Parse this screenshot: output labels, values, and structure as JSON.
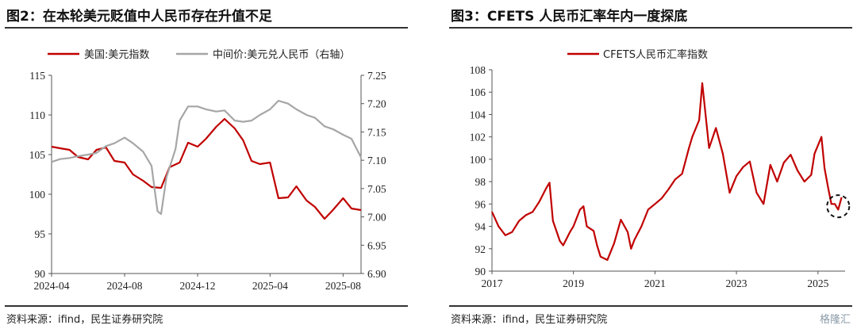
{
  "charts": {
    "left": {
      "title": "图2：在本轮美元贬值中人民币存在升值不足",
      "source": "资料来源：ifind，民生证券研究院"
    },
    "right": {
      "title": "图3：CFETS 人民币汇率年内一度探底",
      "source": "资料来源：ifind，民生证券研究院"
    }
  },
  "watermark": "格隆汇",
  "colors": {
    "red": "#c00000",
    "gray": "#a6a6a6",
    "annotation": "#111111"
  },
  "chart_data": [
    {
      "type": "line",
      "title": "图2：在本轮美元贬值中人民币存在升值不足",
      "x_ticks": [
        "2024-04",
        "2024-08",
        "2024-12",
        "2025-04",
        "2025-08"
      ],
      "x_range": [
        "2024-04-01",
        "2025-08-31"
      ],
      "y_left": {
        "ticks": [
          90,
          95,
          100,
          105,
          110,
          115
        ],
        "ylim": [
          90,
          115
        ]
      },
      "y_right": {
        "ticks": [
          "6.90",
          "6.95",
          "7.00",
          "7.05",
          "7.10",
          "7.15",
          "7.20",
          "7.25"
        ],
        "ylim": [
          6.9,
          7.25
        ]
      },
      "legend_position": "top",
      "grid": false,
      "series": [
        {
          "name": "美国:美元指数",
          "axis": "left",
          "color": "#c00000",
          "points": [
            [
              "2024-04-01",
              106.0
            ],
            [
              "2024-04-15",
              105.8
            ],
            [
              "2024-05-01",
              105.6
            ],
            [
              "2024-05-15",
              104.7
            ],
            [
              "2024-06-01",
              104.4
            ],
            [
              "2024-06-15",
              105.6
            ],
            [
              "2024-07-01",
              105.9
            ],
            [
              "2024-07-15",
              104.2
            ],
            [
              "2024-08-01",
              104.0
            ],
            [
              "2024-08-15",
              102.5
            ],
            [
              "2024-09-01",
              101.7
            ],
            [
              "2024-09-15",
              100.9
            ],
            [
              "2024-10-01",
              100.8
            ],
            [
              "2024-10-15",
              103.4
            ],
            [
              "2024-11-01",
              104.0
            ],
            [
              "2024-11-15",
              106.5
            ],
            [
              "2024-12-01",
              106.0
            ],
            [
              "2024-12-15",
              107.0
            ],
            [
              "2025-01-01",
              108.5
            ],
            [
              "2025-01-15",
              109.5
            ],
            [
              "2025-02-01",
              108.3
            ],
            [
              "2025-02-15",
              106.8
            ],
            [
              "2025-03-01",
              104.2
            ],
            [
              "2025-03-15",
              103.8
            ],
            [
              "2025-04-01",
              104.0
            ],
            [
              "2025-04-15",
              99.5
            ],
            [
              "2025-05-01",
              99.6
            ],
            [
              "2025-05-15",
              101.0
            ],
            [
              "2025-06-01",
              99.2
            ],
            [
              "2025-06-15",
              98.4
            ],
            [
              "2025-07-01",
              96.9
            ],
            [
              "2025-07-15",
              98.0
            ],
            [
              "2025-08-01",
              99.5
            ],
            [
              "2025-08-15",
              98.2
            ],
            [
              "2025-08-31",
              98.0
            ]
          ]
        },
        {
          "name": "中间价:美元兑人民币（右轴）",
          "axis": "right",
          "color": "#a6a6a6",
          "points": [
            [
              "2024-04-01",
              7.097
            ],
            [
              "2024-04-15",
              7.102
            ],
            [
              "2024-05-01",
              7.104
            ],
            [
              "2024-05-15",
              7.107
            ],
            [
              "2024-06-01",
              7.11
            ],
            [
              "2024-06-15",
              7.113
            ],
            [
              "2024-07-01",
              7.125
            ],
            [
              "2024-07-15",
              7.13
            ],
            [
              "2024-08-01",
              7.14
            ],
            [
              "2024-08-15",
              7.13
            ],
            [
              "2024-09-01",
              7.115
            ],
            [
              "2024-09-15",
              7.09
            ],
            [
              "2024-09-25",
              7.01
            ],
            [
              "2024-10-01",
              7.005
            ],
            [
              "2024-10-10",
              7.07
            ],
            [
              "2024-10-25",
              7.12
            ],
            [
              "2024-11-01",
              7.17
            ],
            [
              "2024-11-15",
              7.195
            ],
            [
              "2024-12-01",
              7.195
            ],
            [
              "2024-12-15",
              7.19
            ],
            [
              "2025-01-01",
              7.186
            ],
            [
              "2025-01-15",
              7.188
            ],
            [
              "2025-02-01",
              7.17
            ],
            [
              "2025-02-15",
              7.168
            ],
            [
              "2025-03-01",
              7.17
            ],
            [
              "2025-03-15",
              7.18
            ],
            [
              "2025-04-01",
              7.19
            ],
            [
              "2025-04-15",
              7.205
            ],
            [
              "2025-05-01",
              7.2
            ],
            [
              "2025-05-15",
              7.19
            ],
            [
              "2025-06-01",
              7.18
            ],
            [
              "2025-06-15",
              7.175
            ],
            [
              "2025-07-01",
              7.16
            ],
            [
              "2025-07-15",
              7.155
            ],
            [
              "2025-08-01",
              7.145
            ],
            [
              "2025-08-15",
              7.138
            ],
            [
              "2025-08-31",
              7.105
            ]
          ]
        }
      ]
    },
    {
      "type": "line",
      "title": "图3：CFETS 人民币汇率年内一度探底",
      "x_ticks": [
        "2017",
        "2019",
        "2021",
        "2023",
        "2025"
      ],
      "x_range": [
        "2017-01-01",
        "2025-09-01"
      ],
      "ylim": [
        90,
        108
      ],
      "y_ticks": [
        90,
        92,
        94,
        96,
        98,
        100,
        102,
        104,
        106,
        108
      ],
      "legend_position": "top",
      "grid": false,
      "series": [
        {
          "name": "CFETS人民币汇率指数",
          "color": "#c00000",
          "points": [
            [
              "2017-01-01",
              95.3
            ],
            [
              "2017-03-01",
              94.0
            ],
            [
              "2017-05-01",
              93.2
            ],
            [
              "2017-07-01",
              93.5
            ],
            [
              "2017-09-01",
              94.5
            ],
            [
              "2017-11-01",
              95.0
            ],
            [
              "2018-01-01",
              95.3
            ],
            [
              "2018-03-01",
              96.2
            ],
            [
              "2018-05-01",
              97.4
            ],
            [
              "2018-06-01",
              97.9
            ],
            [
              "2018-07-01",
              94.5
            ],
            [
              "2018-09-01",
              92.7
            ],
            [
              "2018-10-01",
              92.3
            ],
            [
              "2018-12-01",
              93.5
            ],
            [
              "2019-01-01",
              94.0
            ],
            [
              "2019-03-01",
              95.5
            ],
            [
              "2019-04-01",
              95.8
            ],
            [
              "2019-05-01",
              94.0
            ],
            [
              "2019-07-01",
              93.6
            ],
            [
              "2019-08-01",
              92.3
            ],
            [
              "2019-09-01",
              91.3
            ],
            [
              "2019-11-01",
              91.0
            ],
            [
              "2020-01-01",
              92.5
            ],
            [
              "2020-03-01",
              94.6
            ],
            [
              "2020-05-01",
              93.5
            ],
            [
              "2020-06-01",
              92.0
            ],
            [
              "2020-07-01",
              92.8
            ],
            [
              "2020-09-01",
              94.0
            ],
            [
              "2020-11-01",
              95.5
            ],
            [
              "2021-01-01",
              96.0
            ],
            [
              "2021-03-01",
              96.5
            ],
            [
              "2021-05-01",
              97.3
            ],
            [
              "2021-07-01",
              98.2
            ],
            [
              "2021-09-01",
              98.7
            ],
            [
              "2021-11-01",
              101.0
            ],
            [
              "2021-12-01",
              102.0
            ],
            [
              "2022-02-01",
              103.5
            ],
            [
              "2022-03-01",
              106.8
            ],
            [
              "2022-05-01",
              101.0
            ],
            [
              "2022-07-01",
              102.8
            ],
            [
              "2022-09-01",
              100.5
            ],
            [
              "2022-11-01",
              97.0
            ],
            [
              "2023-01-01",
              98.5
            ],
            [
              "2023-03-01",
              99.3
            ],
            [
              "2023-05-01",
              99.8
            ],
            [
              "2023-07-01",
              97.0
            ],
            [
              "2023-09-01",
              96.0
            ],
            [
              "2023-11-01",
              99.5
            ],
            [
              "2024-01-01",
              98.0
            ],
            [
              "2024-03-01",
              99.7
            ],
            [
              "2024-05-01",
              100.4
            ],
            [
              "2024-07-01",
              99.0
            ],
            [
              "2024-09-01",
              98.0
            ],
            [
              "2024-11-01",
              98.6
            ],
            [
              "2024-12-01",
              100.5
            ],
            [
              "2025-02-01",
              102.0
            ],
            [
              "2025-03-01",
              99.2
            ],
            [
              "2025-04-01",
              97.5
            ],
            [
              "2025-05-01",
              96.0
            ],
            [
              "2025-06-01",
              96.0
            ],
            [
              "2025-07-01",
              95.5
            ],
            [
              "2025-08-01",
              96.6
            ]
          ]
        }
      ],
      "annotation": {
        "shape": "dashed-circle",
        "at": [
          "2025-07-01",
          95.8
        ]
      }
    }
  ]
}
